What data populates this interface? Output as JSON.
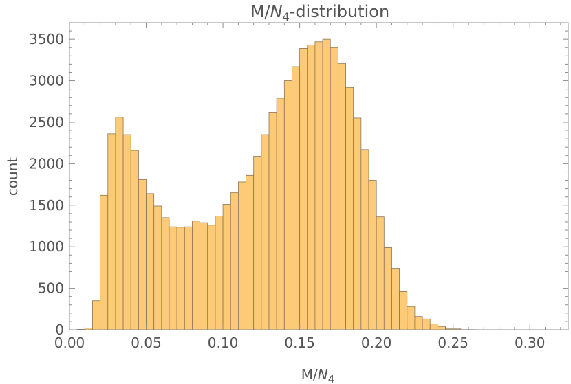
{
  "chart_data": {
    "type": "bar",
    "title": {
      "main": "M/",
      "italic": "N",
      "sub": "4",
      "tail": "-distribution"
    },
    "xlabel": {
      "main": "M/",
      "italic": "N",
      "sub": "4"
    },
    "ylabel": "count",
    "xlim": [
      0.0,
      0.325
    ],
    "ylim": [
      0,
      3700
    ],
    "xticks": [
      "0.00",
      "0.05",
      "0.10",
      "0.15",
      "0.20",
      "0.25",
      "0.30"
    ],
    "yticks": [
      "0",
      "500",
      "1000",
      "1500",
      "2000",
      "2500",
      "3000",
      "3500"
    ],
    "bin_start": 0.0,
    "bin_width": 0.005,
    "values": [
      0,
      5,
      20,
      350,
      1620,
      2360,
      2560,
      2350,
      2160,
      1810,
      1640,
      1490,
      1350,
      1240,
      1235,
      1240,
      1310,
      1290,
      1260,
      1370,
      1510,
      1650,
      1780,
      1860,
      2090,
      2350,
      2620,
      2790,
      3000,
      3170,
      3390,
      3430,
      3470,
      3500,
      3400,
      3210,
      2920,
      2550,
      2170,
      1800,
      1360,
      990,
      740,
      460,
      280,
      160,
      130,
      70,
      40,
      10,
      10,
      2,
      2,
      0,
      0
    ],
    "bar_color": "#fdcb78",
    "edge_color": "#8a7356",
    "grid": false
  }
}
